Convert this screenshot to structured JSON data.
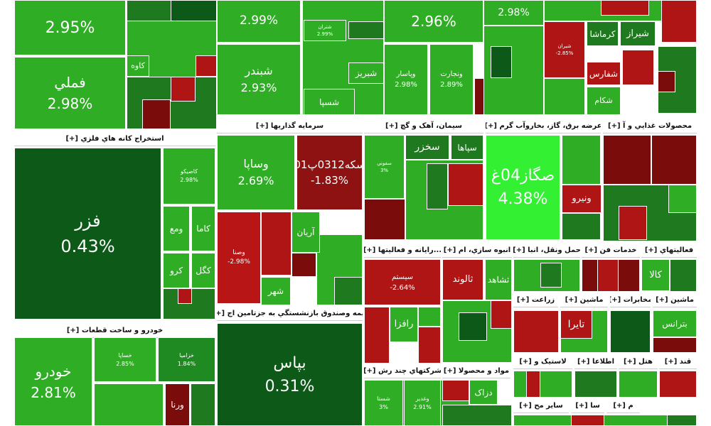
{
  "sectors": [
    {
      "header": "استخراج کانه هاي فلزي [+]"
    },
    {
      "header": "خودرو و ساخت قطعات [+]"
    },
    {
      "header": "سرمايه گذاريها [+]"
    },
    {
      "header": "سيمان، آهک و گچ [+]"
    },
    {
      "header": "عرضه برق، گاز، بخاروآب گرم [+]"
    },
    {
      "header": "محصولات غذايي و آ [+]"
    },
    {
      "header": "بيمه وصندوق بازنشستگي به جزتامين اج [+]"
    },
    {
      "header": "...رايانه و فعاليتها [+]"
    },
    {
      "header": "انبوه سازي، ام [+]"
    },
    {
      "header": "حمل ونقل، انبا [+]"
    },
    {
      "header": "خدمات فن [+]"
    },
    {
      "header": "فعاليتهاي [+]"
    },
    {
      "header": "زراعت [+]"
    },
    {
      "header": "ماشين [+]"
    },
    {
      "header": "مخابرات [+]"
    },
    {
      "header": "ماشين [+]"
    },
    {
      "header": "شرکتهاي چند رش [+]"
    },
    {
      "header": "مواد و محصولا [+]"
    },
    {
      "header": "لاستيک و [+]"
    },
    {
      "header": "اطلاعا [+]"
    },
    {
      "header": "هتل [+]"
    },
    {
      "header": "قند [+]"
    },
    {
      "header": "ساير مح [+]"
    },
    {
      "header": "سا [+]"
    },
    {
      "header": "م [+]"
    }
  ],
  "tiles": [
    {
      "change": "2.95%",
      "color": "#2fae25"
    },
    {
      "label": "فملي",
      "change": "2.98%",
      "color": "#2fae25"
    },
    {
      "label": "کاوه",
      "color": "#2fae25"
    },
    {
      "label": "شبندر",
      "change": "2.93%",
      "color": "#2fae25"
    },
    {
      "change": "2.99%",
      "color": "#2fae25"
    },
    {
      "label": "شتران",
      "change": "2.99%",
      "color": "#2fae25"
    },
    {
      "label": "شبريز",
      "color": "#2fae25"
    },
    {
      "label": "شسپا",
      "color": "#2fae25"
    },
    {
      "change": "2.96%",
      "color": "#2fae25"
    },
    {
      "label": "وپاسار",
      "change": "2.98%",
      "color": "#2fae25"
    },
    {
      "label": "ونجارت",
      "change": "2.89%",
      "color": "#2fae25"
    },
    {
      "change": "2.98%",
      "color": "#2fae25"
    },
    {
      "label": "شيراز",
      "color": "#1f7a1f"
    },
    {
      "label": "کرماشا",
      "color": "#1f7a1f"
    },
    {
      "label": "شفارس",
      "color": "#b01515"
    },
    {
      "label": "شکام",
      "color": "#2fae25"
    },
    {
      "label": "شيران",
      "change": "-2.85%",
      "color": "#b01515"
    },
    {
      "label": "فزر",
      "change": "0.43%",
      "color": "#0d5a18"
    },
    {
      "label": "کاصيکو",
      "change": "2.98%",
      "color": "#2fae25"
    },
    {
      "label": "کاما",
      "color": "#2fae25"
    },
    {
      "label": "ومع",
      "color": "#2fae25"
    },
    {
      "label": "کگل",
      "color": "#2fae25"
    },
    {
      "label": "کرو",
      "color": "#2fae25"
    },
    {
      "label": "خودرو",
      "change": "2.81%",
      "color": "#2fae25"
    },
    {
      "label": "خساپا",
      "change": "2.85%",
      "color": "#2fae25"
    },
    {
      "label": "خزامیا",
      "change": "1.84%",
      "color": "#1f8a22"
    },
    {
      "label": "ورنا",
      "color": "#7a0c0c"
    },
    {
      "label": "وساپا",
      "change": "2.69%",
      "color": "#2fae25"
    },
    {
      "label": "سکه0312پ01",
      "change": "-1.83%",
      "color": "#8e1212"
    },
    {
      "label": "وصنا",
      "change": "-2.98%",
      "color": "#b81616"
    },
    {
      "label": "آريان",
      "color": "#2fae25"
    },
    {
      "label": "شهر",
      "color": "#2fae25"
    },
    {
      "label": "سخزر",
      "color": "#1f7a1f"
    },
    {
      "label": "سپاها",
      "color": "#1f7a1f"
    },
    {
      "label": "سفوني",
      "change": "3%",
      "color": "#2fae25"
    },
    {
      "label": "صگاز04غ",
      "change": "4.38%",
      "color": "#33f033"
    },
    {
      "label": "ونيرو",
      "color": "#b01515"
    },
    {
      "label": "سيستم",
      "change": "-2.64%",
      "color": "#b01515"
    },
    {
      "label": "رافزا",
      "color": "#2fae25"
    },
    {
      "label": "ثالوند",
      "color": "#b01515"
    },
    {
      "label": "ثشاهد",
      "color": "#2fae25"
    },
    {
      "label": "کالا",
      "color": "#2fae25"
    },
    {
      "label": "بپاس",
      "change": "0.31%",
      "color": "#0d5a18"
    },
    {
      "label": "تايرا",
      "color": "#b01515"
    },
    {
      "label": "بترانس",
      "color": "#2fae25"
    },
    {
      "label": "وغدير",
      "change": "2.91%",
      "color": "#2fae25"
    },
    {
      "label": "شستا",
      "change": "3%",
      "color": "#2fae25"
    },
    {
      "label": "دزاک",
      "color": "#2fae25"
    }
  ]
}
